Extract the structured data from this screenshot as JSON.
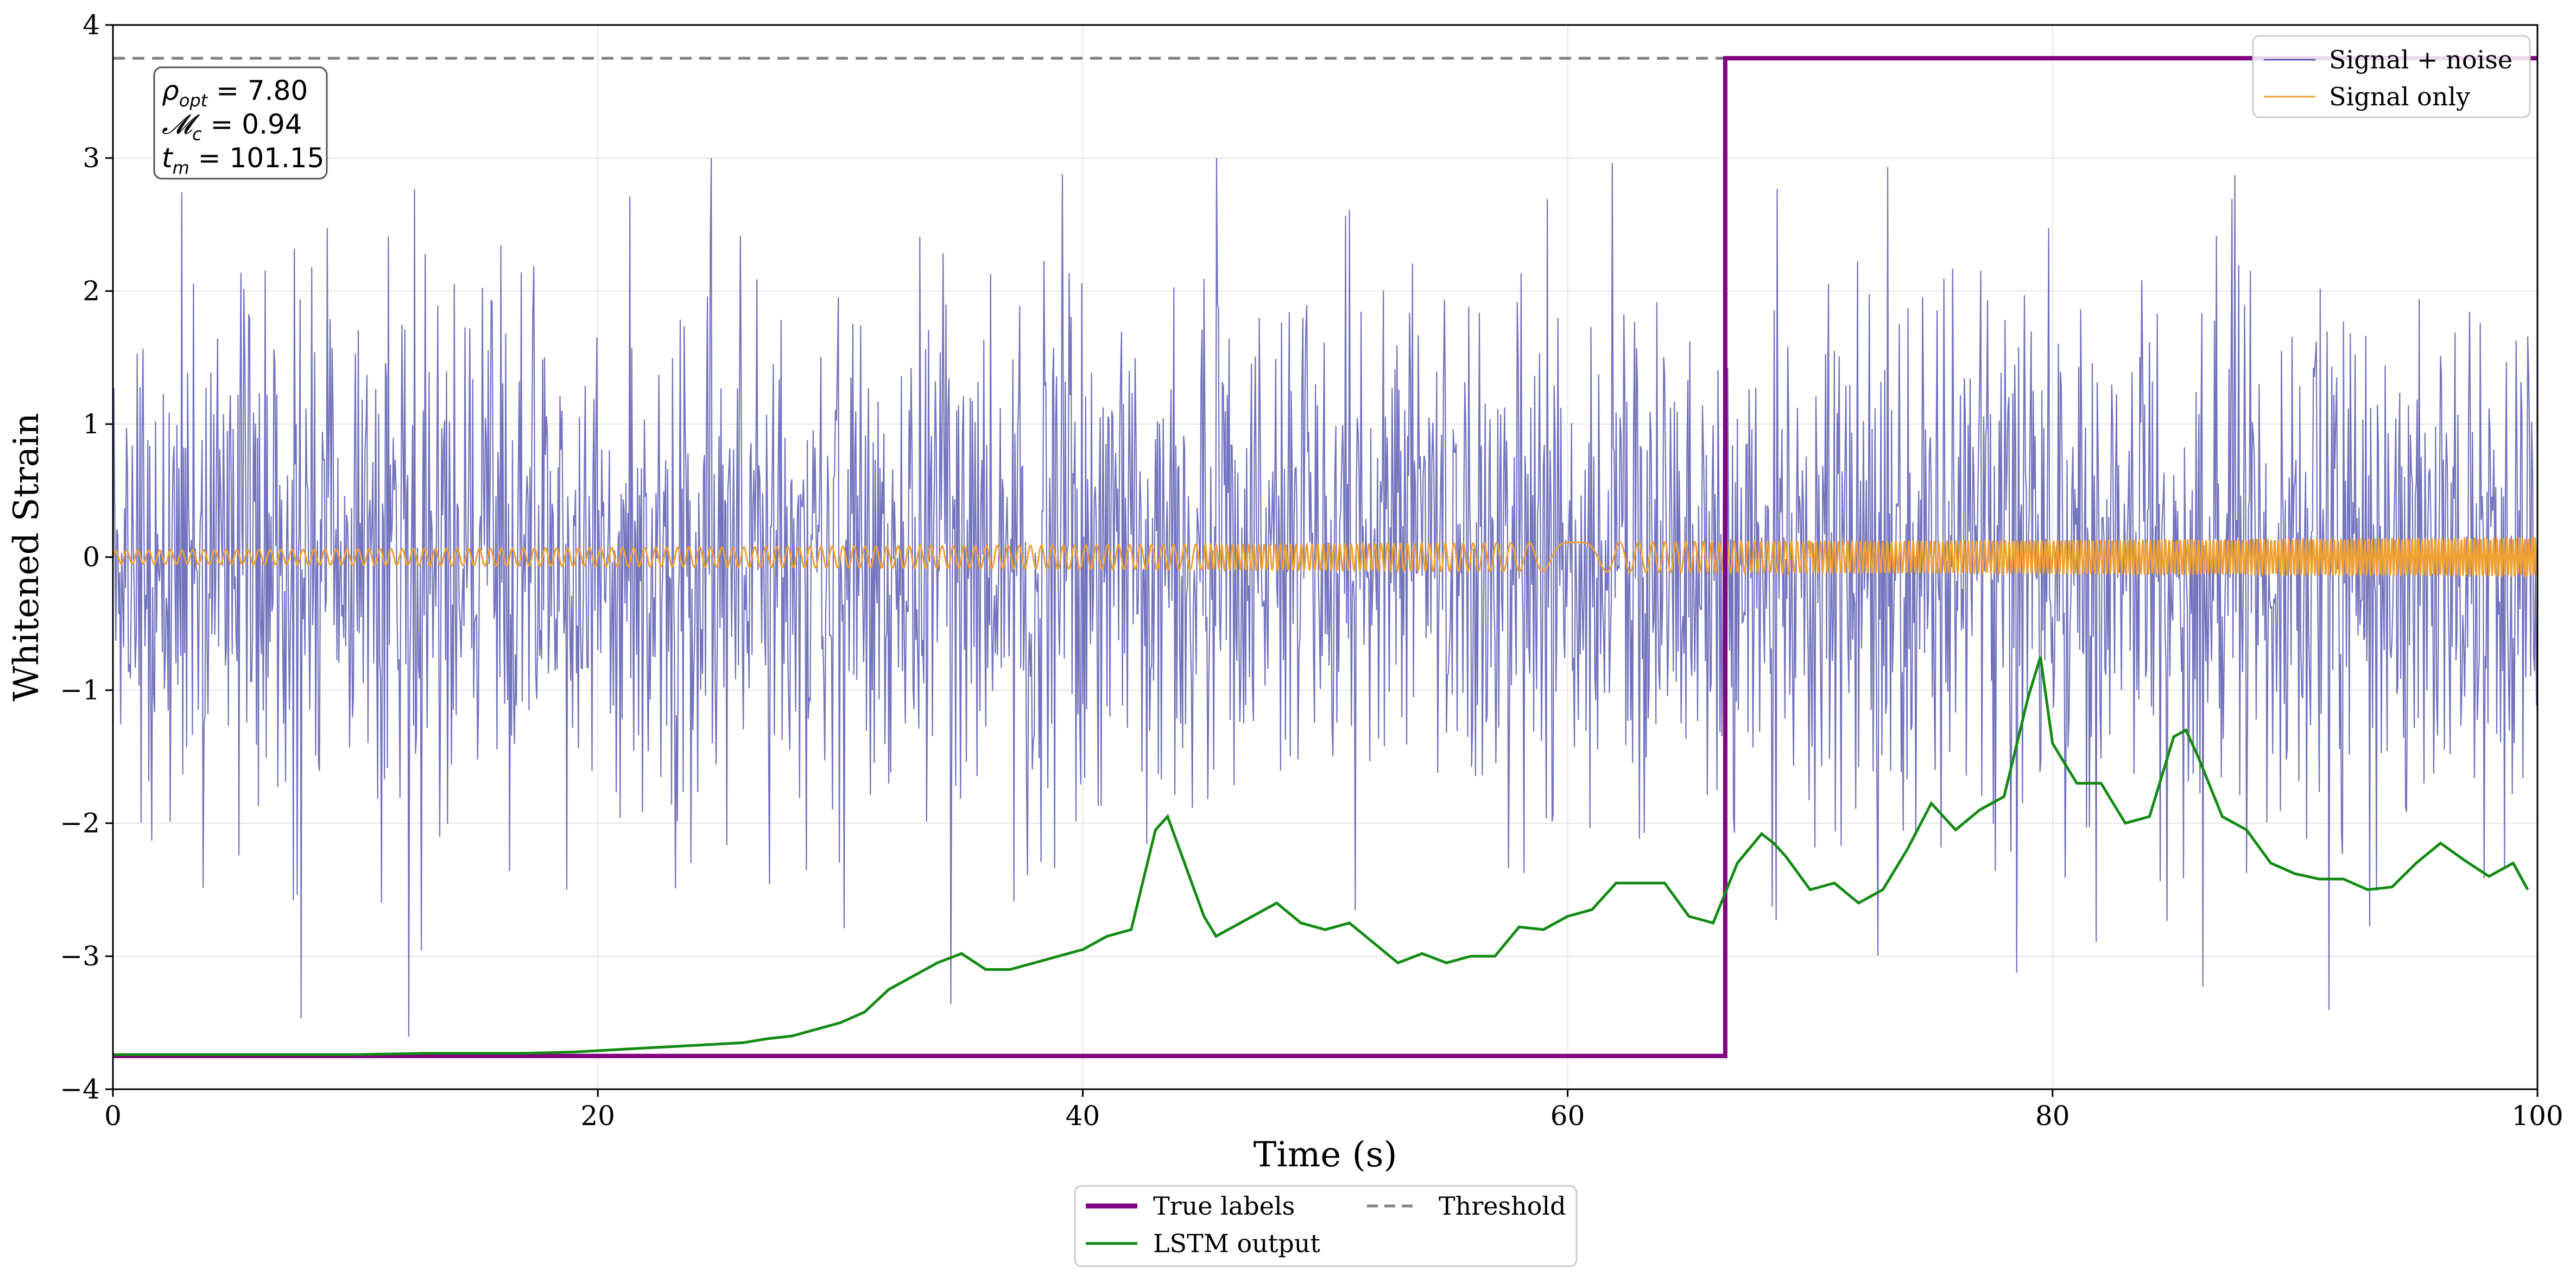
{
  "chart_data": {
    "type": "line",
    "xlabel": "Time (s)",
    "ylabel": "Whitened Strain",
    "xlim": [
      0,
      100
    ],
    "ylim": [
      -4,
      4
    ],
    "x_ticks": [
      0,
      20,
      40,
      60,
      80,
      100
    ],
    "y_ticks": [
      -4,
      -3,
      -2,
      -1,
      0,
      1,
      2,
      3,
      4
    ],
    "grid": true,
    "series": [
      {
        "name": "Signal + noise",
        "color": "#5b5bb3",
        "kind": "noisy-strain",
        "sample_rate_hz": 25,
        "noise_std": 1.0,
        "x_range": [
          0,
          100
        ],
        "y_extent_approx": [
          -4,
          3.0
        ]
      },
      {
        "name": "Signal only",
        "color": "#f0a030",
        "kind": "chirp",
        "amplitude_start": 0.05,
        "amplitude_end": 0.15,
        "x_range": [
          0,
          100
        ]
      },
      {
        "name": "True labels",
        "color": "#800080",
        "kind": "step",
        "step_time": 66.5,
        "low": -3.75,
        "high": 3.75
      },
      {
        "name": "LSTM output",
        "color": "#138a13",
        "kind": "line",
        "x": [
          0,
          5,
          10,
          13,
          15,
          17,
          19,
          20,
          21,
          22,
          23,
          24,
          25,
          26,
          27,
          28,
          29,
          30,
          31,
          32,
          33,
          34,
          35,
          36,
          37,
          38,
          39,
          40,
          41,
          42,
          43,
          43.5,
          44,
          45,
          45.5,
          46,
          47,
          48,
          49,
          50,
          51,
          52,
          53,
          54,
          55,
          56,
          57,
          58,
          59,
          60,
          61,
          62,
          63,
          64,
          65,
          66,
          67,
          68,
          68.5,
          69,
          70,
          71,
          72,
          73,
          74,
          75,
          76,
          77,
          78,
          79,
          79.5,
          80,
          81,
          82,
          83,
          84,
          85,
          85.5,
          86,
          87,
          88,
          89,
          90,
          91,
          92,
          93,
          94,
          95,
          96,
          97,
          98,
          99,
          99.6
        ],
        "y": [
          -3.74,
          -3.74,
          -3.74,
          -3.73,
          -3.73,
          -3.73,
          -3.72,
          -3.71,
          -3.7,
          -3.69,
          -3.68,
          -3.67,
          -3.66,
          -3.65,
          -3.62,
          -3.6,
          -3.55,
          -3.5,
          -3.42,
          -3.25,
          -3.15,
          -3.05,
          -2.98,
          -3.1,
          -3.1,
          -3.05,
          -3.0,
          -2.95,
          -2.85,
          -2.8,
          -2.05,
          -1.95,
          -2.2,
          -2.7,
          -2.85,
          -2.8,
          -2.7,
          -2.6,
          -2.75,
          -2.8,
          -2.75,
          -2.9,
          -3.05,
          -2.98,
          -3.05,
          -3.0,
          -3.0,
          -2.78,
          -2.8,
          -2.7,
          -2.65,
          -2.45,
          -2.45,
          -2.45,
          -2.7,
          -2.75,
          -2.3,
          -2.08,
          -2.15,
          -2.25,
          -2.5,
          -2.45,
          -2.6,
          -2.5,
          -2.2,
          -1.85,
          -2.05,
          -1.9,
          -1.8,
          -1.05,
          -0.75,
          -1.4,
          -1.7,
          -1.7,
          -2.0,
          -1.95,
          -1.35,
          -1.3,
          -1.5,
          -1.95,
          -2.05,
          -2.3,
          -2.38,
          -2.42,
          -2.42,
          -2.5,
          -2.48,
          -2.3,
          -2.15,
          -2.28,
          -2.4,
          -2.3,
          -2.5
        ]
      },
      {
        "name": "Threshold",
        "color": "#7f7f7f",
        "kind": "hline",
        "y": 3.75
      }
    ],
    "annotation": {
      "lines": [
        {
          "symbol": "ρ",
          "sub": "opt",
          "value": "= 7.80"
        },
        {
          "symbol": "𝓜",
          "sub": "c",
          "value": "= 0.94"
        },
        {
          "symbol": "t",
          "sub": "m",
          "value": "= 101.15"
        }
      ],
      "placement": "top-left"
    },
    "legend_upper": {
      "placement": "top-right",
      "entries": [
        "Signal + noise",
        "Signal only"
      ]
    },
    "legend_lower": {
      "placement": "bottom-center",
      "entries": [
        "True labels",
        "Threshold",
        "LSTM output"
      ]
    }
  }
}
